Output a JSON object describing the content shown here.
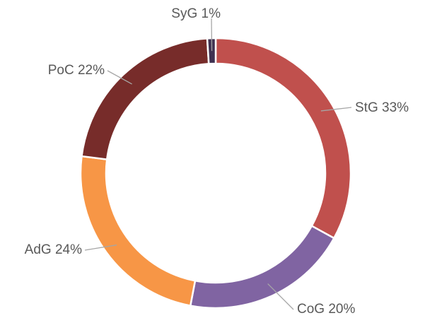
{
  "chart_data": {
    "type": "donut",
    "values": [
      33,
      20,
      24,
      22,
      1
    ],
    "value_labels": [
      "StG 33%",
      "CoG 20%",
      "AdG 24%",
      "PoC 22%",
      "SyG 1%"
    ],
    "colors": [
      "#c0504d",
      "#8064a2",
      "#f79646",
      "#772c2a",
      "#3f3151"
    ]
  }
}
